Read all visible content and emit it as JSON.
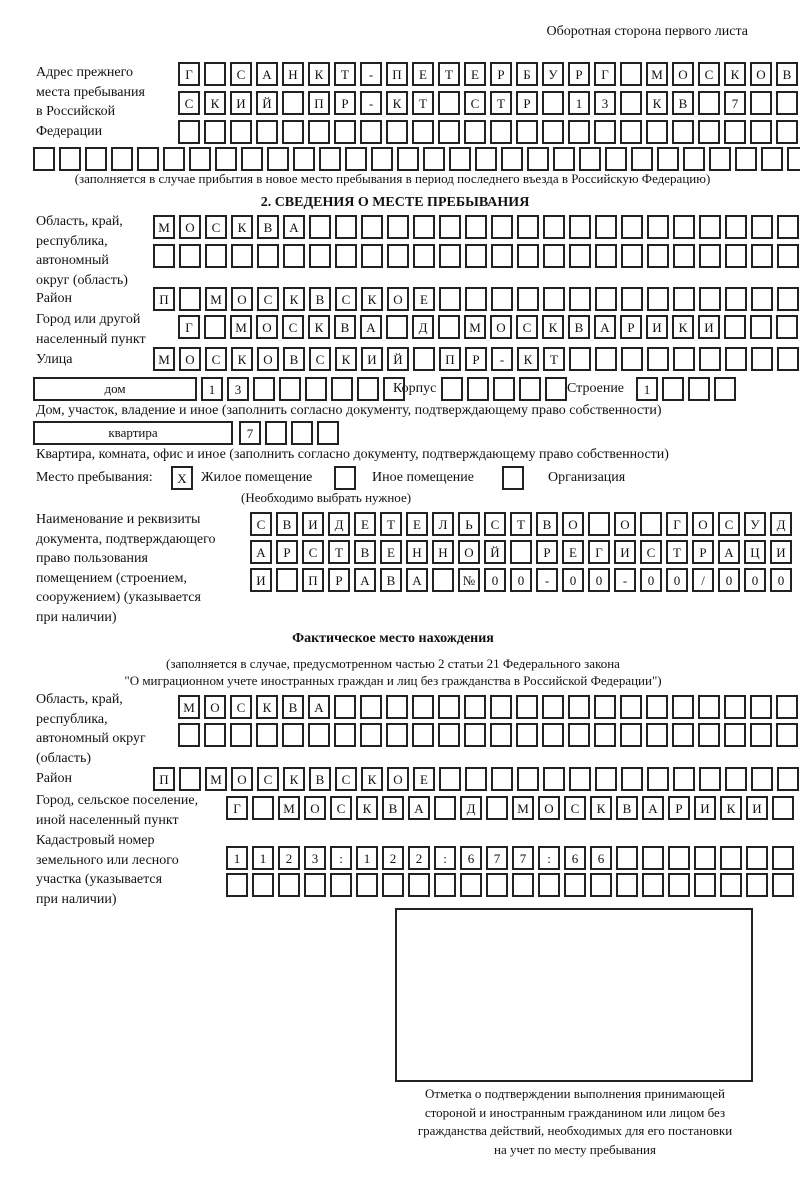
{
  "header": "Оборотная сторона первого листа",
  "prev_address": {
    "label": [
      "Адрес прежнего",
      "места пребывания",
      "в Российской",
      "Федерации"
    ],
    "rows": [
      "Г САНКТ-ПЕТЕРБУРГ МОСКОВ",
      "СКИЙ ПР-КТ СТР 13 КВ 7",
      "",
      ""
    ],
    "note": "(заполняется в случае прибытия в новое место пребывания в период последнего въезда в Российскую Федерацию)"
  },
  "section2": {
    "title": "2. СВЕДЕНИЯ О МЕСТЕ ПРЕБЫВАНИЯ",
    "region_label": [
      "Область, край,",
      "республика,",
      "автономный",
      "округ (область)"
    ],
    "region_rows": [
      "МОСКВА",
      ""
    ],
    "district_label": "Район",
    "district": "П МОСКВСКОЕ",
    "city_label": [
      "Город или другой",
      "населенный пункт"
    ],
    "city": "Г МОСКВА Д МОСКВАРИКИ",
    "street_label": "Улица",
    "street": "МОСКОВСКИЙ ПР-КТ",
    "house_type": "дом",
    "house": "13",
    "korpus_label": "Корпус",
    "korpus": "",
    "building_label": "Строение",
    "building": "1",
    "house_note": "Дом, участок, владение и иное (заполнить согласно документу, подтверждающему право собственности)",
    "apt_type": "квартира",
    "apt": "7",
    "apt_note": "Квартира, комната, офис и иное (заполнить согласно документу, подтверждающему право собственности)",
    "stay_label": "Место пребывания:",
    "stay_options": [
      {
        "mark": "X",
        "label": "Жилое помещение"
      },
      {
        "mark": "",
        "label": "Иное помещение"
      },
      {
        "mark": "",
        "label": "Организация"
      }
    ],
    "stay_hint": "(Необходимо выбрать нужное)",
    "doc_label": [
      "Наименование и реквизиты",
      "документа, подтверждающего",
      "право пользования",
      "помещением (строением,",
      "сооружением) (указывается",
      "при наличии)"
    ],
    "doc_rows": [
      "СВИДЕТЕЛЬСТВО О ГОСУД",
      "АРСТВЕННОЙ РЕГИСТРАЦИ",
      "И ПРАВА №00-00-00/000"
    ]
  },
  "actual": {
    "title": "Фактическое место нахождения",
    "note": [
      "(заполняется в случае, предусмотренном частью 2 статьи 21 Федерального закона",
      "\"О миграционном учете иностранных граждан и лиц без гражданства в Российской Федерации\")"
    ],
    "region_label": [
      "Область, край,",
      "республика,",
      "автономный округ",
      "(область)"
    ],
    "region_rows": [
      "МОСКВА",
      ""
    ],
    "district_label": "Район",
    "district": "П МОСКВСКОЕ",
    "city_label": [
      "Город, сельское поселение,",
      "иной населенный пункт"
    ],
    "city": "Г МОСКВА Д МОСКВАРИКИ",
    "cadastral_label": [
      "Кадастровый номер",
      "земельного или лесного",
      "участка (указывается",
      "при наличии)"
    ],
    "cadastral_rows": [
      "1123:122:677:66",
      ""
    ]
  },
  "confirmation_caption": [
    "Отметка о подтверждении выполнения принимающей",
    "стороной и иностранным гражданином или лицом без",
    "гражданства действий, необходимых для его постановки",
    "на учет по месту пребывания"
  ]
}
